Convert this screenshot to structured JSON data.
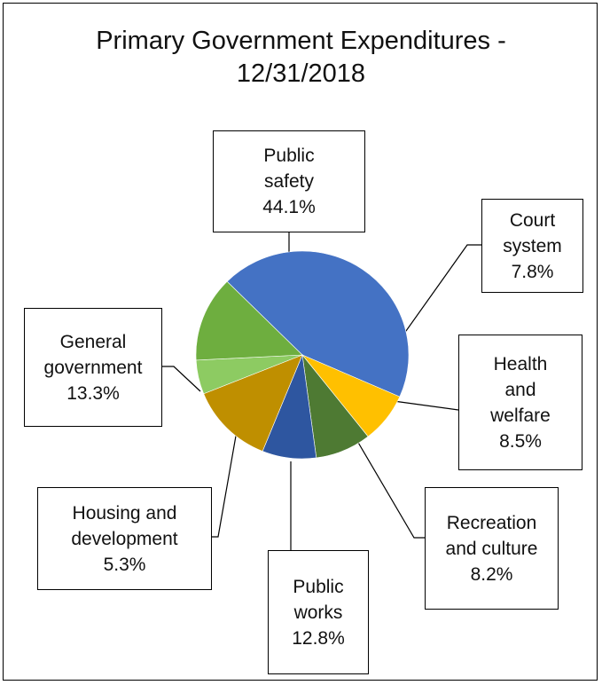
{
  "chart_data": {
    "type": "pie",
    "title_lines": [
      "Primary Government Expenditures -",
      "12/31/2018"
    ],
    "slices": [
      {
        "name": "Public safety",
        "label_lines": [
          "Public",
          "safety"
        ],
        "value": 44.1,
        "value_label": "44.1%",
        "color": "#4472C4"
      },
      {
        "name": "Court system",
        "label_lines": [
          "Court",
          "system"
        ],
        "value": 7.8,
        "value_label": "7.8%",
        "color": "#FFC000"
      },
      {
        "name": "Health and welfare",
        "label_lines": [
          "Health",
          "and",
          "welfare"
        ],
        "value": 8.5,
        "value_label": "8.5%",
        "color": "#4E7A33"
      },
      {
        "name": "Recreation and culture",
        "label_lines": [
          "Recreation",
          "and culture"
        ],
        "value": 8.2,
        "value_label": "8.2%",
        "color": "#2E56A0"
      },
      {
        "name": "Public works",
        "label_lines": [
          "Public",
          "works"
        ],
        "value": 12.8,
        "value_label": "12.8%",
        "color": "#BF8F00"
      },
      {
        "name": "Housing and development",
        "label_lines": [
          "Housing and",
          "development"
        ],
        "value": 5.3,
        "value_label": "5.3%",
        "color": "#8DCB62"
      },
      {
        "name": "General government",
        "label_lines": [
          "General",
          "government"
        ],
        "value": 13.3,
        "value_label": "13.3%",
        "color": "#6EAE3F"
      }
    ]
  }
}
